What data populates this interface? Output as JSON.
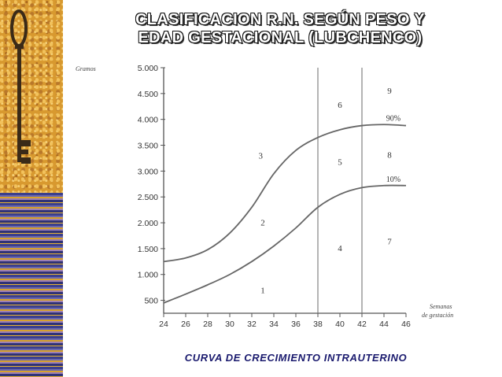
{
  "slide": {
    "title_line1": "CLASIFICACION R.N. SEGÚN PESO Y",
    "title_line2": "EDAD GESTACIONAL (LUBCHENCO)",
    "caption": "CURVA DE CRECIMIENTO INTRAUTERINO"
  },
  "colors": {
    "title_text": "#ffffff",
    "caption_text": "#1a1a6e",
    "curve": "#666666",
    "sidebar_gold": "#d8992f",
    "sidebar_blue": "#3b3f8c"
  },
  "decor": {
    "sidebar_image": "key-icon"
  },
  "chart_data": {
    "type": "line",
    "title": "",
    "ylabel": "Gramos",
    "xlabel_lines": [
      "Semanas",
      "de gestación"
    ],
    "x_ticks": [
      "24",
      "26",
      "28",
      "30",
      "32",
      "34",
      "36",
      "38",
      "40",
      "42",
      "44",
      "46"
    ],
    "y_ticks": [
      "500",
      "1.000",
      "1.500",
      "2.000",
      "2.500",
      "3.000",
      "3.500",
      "4.000",
      "4.500",
      "5.000"
    ],
    "xlim": [
      24,
      46
    ],
    "ylim": [
      250,
      5000
    ],
    "grid": false,
    "vertical_lines": [
      38,
      42
    ],
    "series": [
      {
        "name": "90%",
        "x": [
          24,
          26,
          28,
          30,
          32,
          34,
          36,
          38,
          40,
          42,
          44,
          46
        ],
        "values": [
          1250,
          1320,
          1480,
          1800,
          2300,
          2950,
          3400,
          3650,
          3800,
          3880,
          3900,
          3880
        ]
      },
      {
        "name": "10%",
        "x": [
          24,
          26,
          28,
          30,
          32,
          34,
          36,
          38,
          40,
          42,
          44,
          46
        ],
        "values": [
          450,
          620,
          800,
          1000,
          1250,
          1550,
          1900,
          2300,
          2550,
          2680,
          2720,
          2720
        ]
      }
    ],
    "regions": [
      {
        "label": "1",
        "x": 33,
        "y": 640
      },
      {
        "label": "2",
        "x": 33,
        "y": 1950
      },
      {
        "label": "3",
        "x": 32.8,
        "y": 3240
      },
      {
        "label": "4",
        "x": 40,
        "y": 1450
      },
      {
        "label": "5",
        "x": 40,
        "y": 3120
      },
      {
        "label": "6",
        "x": 40,
        "y": 4220
      },
      {
        "label": "7",
        "x": 44.5,
        "y": 1580
      },
      {
        "label": "8",
        "x": 44.5,
        "y": 3260
      },
      {
        "label": "9",
        "x": 44.5,
        "y": 4500
      }
    ]
  }
}
